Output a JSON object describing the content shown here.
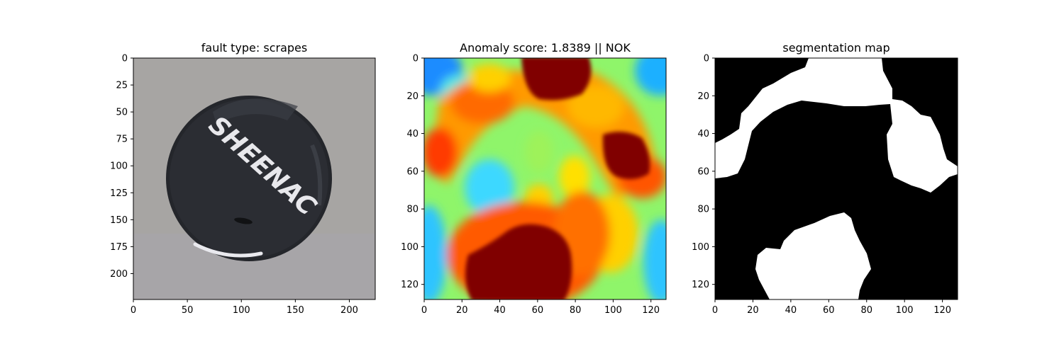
{
  "chart_data": [
    {
      "type": "image",
      "title": "fault type: scrapes",
      "xlim": [
        0,
        224
      ],
      "ylim": [
        224,
        0
      ],
      "xticks": [
        0,
        50,
        100,
        150,
        200
      ],
      "yticks": [
        0,
        25,
        50,
        75,
        100,
        125,
        150,
        175,
        200
      ],
      "content": "black bottle cap on grey background",
      "cap_text": "SHEENAC",
      "colors": {
        "background": "#a7a5a3",
        "cap": "#2b2d33",
        "text": "#e8e8ec"
      }
    },
    {
      "type": "heatmap",
      "title": "Anomaly score: 1.8389 || NOK",
      "xlim": [
        0,
        128
      ],
      "ylim": [
        128,
        0
      ],
      "xticks": [
        0,
        20,
        40,
        60,
        80,
        100,
        120
      ],
      "yticks": [
        0,
        20,
        40,
        60,
        80,
        100,
        120
      ],
      "colormap": "jet",
      "anomaly_score": 1.8389,
      "verdict": "NOK",
      "hotspots": [
        {
          "x": 64,
          "y": 5,
          "value": 1.0
        },
        {
          "x": 48,
          "y": 106,
          "value": 1.0
        },
        {
          "x": 106,
          "y": 47,
          "value": 0.95
        },
        {
          "x": 15,
          "y": 48,
          "value": 0.8
        },
        {
          "x": 30,
          "y": 25,
          "value": 0.78
        },
        {
          "x": 90,
          "y": 30,
          "value": 0.72
        },
        {
          "x": 57,
          "y": 75,
          "value": 0.65
        }
      ]
    },
    {
      "type": "heatmap",
      "title": "segmentation map",
      "xlim": [
        0,
        128
      ],
      "ylim": [
        128,
        0
      ],
      "xticks": [
        0,
        20,
        40,
        60,
        80,
        100,
        120
      ],
      "yticks": [
        0,
        20,
        40,
        60,
        80,
        100,
        120
      ],
      "colormap": "binary",
      "regions": [
        {
          "label": "anomalous (white)",
          "area": "top arc"
        },
        {
          "label": "anomalous (white)",
          "area": "right lobe"
        },
        {
          "label": "anomalous (white)",
          "area": "bottom blob"
        }
      ],
      "colors": {
        "anomalous": "#ffffff",
        "normal": "#000000"
      }
    }
  ]
}
